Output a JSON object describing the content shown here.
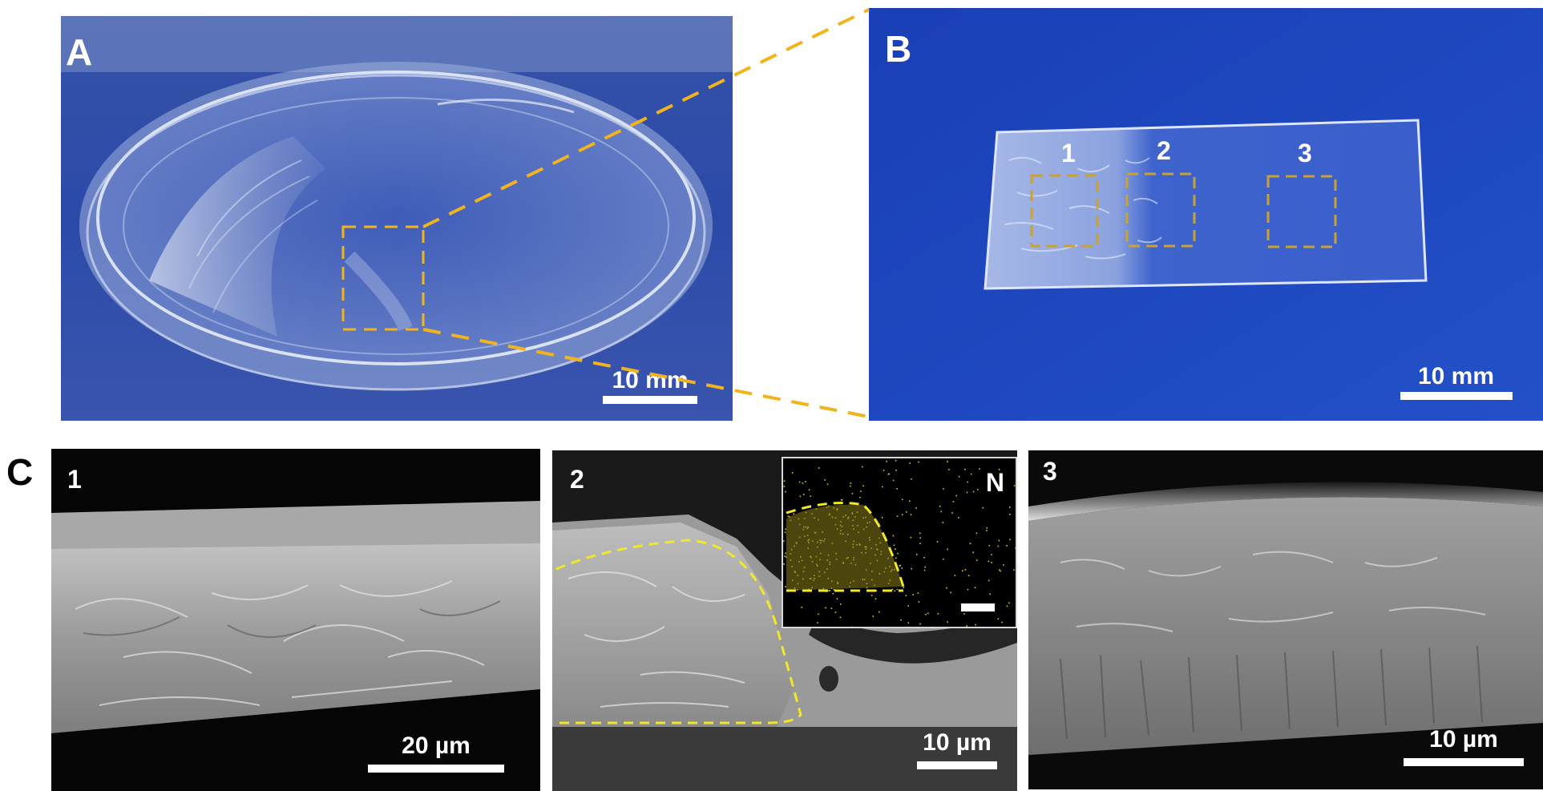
{
  "panels": {
    "a": {
      "letter": "A",
      "scale_label": "10 mm"
    },
    "b": {
      "letter": "B",
      "scale_label": "10 mm",
      "regions": [
        "1",
        "2",
        "3"
      ]
    },
    "c": {
      "letter": "C",
      "sub1": {
        "number": "1",
        "scale_label": "20 µm"
      },
      "sub2": {
        "number": "2",
        "scale_label": "10 µm",
        "inset_label": "N"
      },
      "sub3": {
        "number": "3",
        "scale_label": "10 µm"
      }
    }
  },
  "colors": {
    "highlight": "#f2b41e",
    "inset_dash": "#f0e82a",
    "photo_blue": "#2a4fb0",
    "paper_blue": "#1c45c0",
    "sem_gray": "#8c8c8c"
  }
}
